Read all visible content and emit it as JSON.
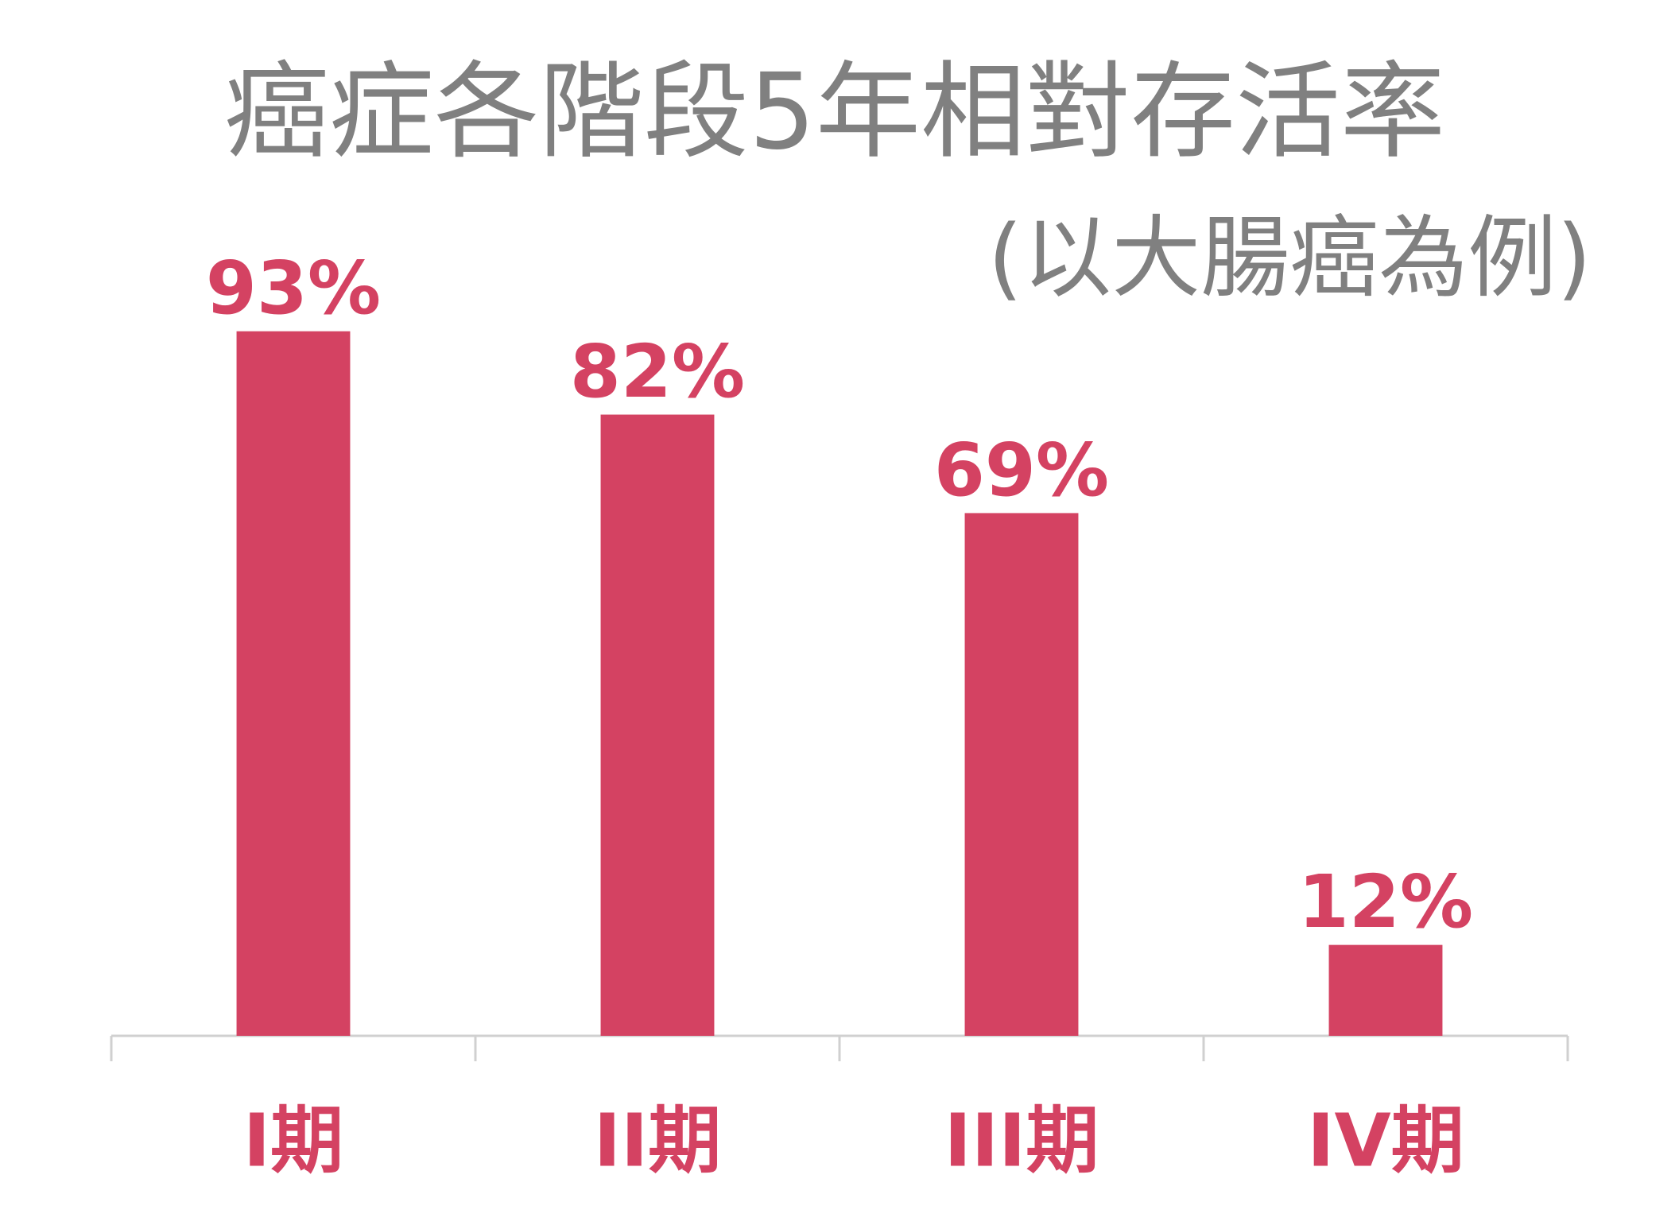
{
  "chart_data": {
    "type": "bar",
    "title": "癌症各階段5年相對存活率",
    "subtitle": "(以大腸癌為例)",
    "categories": [
      "I期",
      "II期",
      "III期",
      "IV期"
    ],
    "values": [
      93,
      82,
      69,
      12
    ],
    "value_labels": [
      "93%",
      "82%",
      "69%",
      "12%"
    ],
    "color": "#d44262",
    "ylim": [
      0,
      100
    ]
  }
}
